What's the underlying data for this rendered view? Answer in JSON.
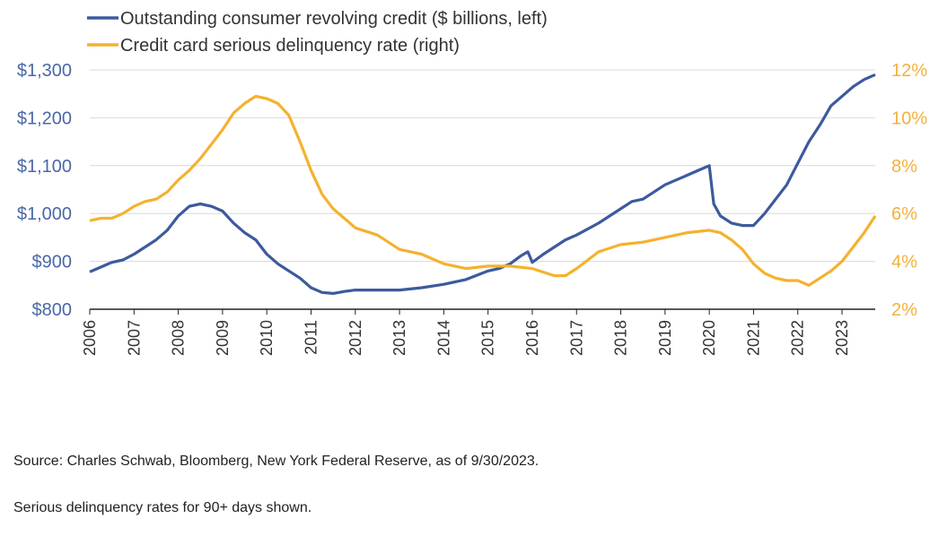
{
  "chart_data": {
    "type": "line",
    "legend_position": "top-left",
    "grid": true,
    "colors": {
      "credit": "#3d5a9e",
      "delinquency": "#f4b22e",
      "left_axis": "#4a67a8",
      "right_axis": "#f2b13c",
      "grid": "#d9d9d9"
    },
    "x_ticks": [
      "2006",
      "2007",
      "2008",
      "2009",
      "2010",
      "2011",
      "2012",
      "2013",
      "2014",
      "2015",
      "2016",
      "2017",
      "2018",
      "2019",
      "2020",
      "2021",
      "2022",
      "2023"
    ],
    "xlim": [
      2006.0,
      2023.75
    ],
    "y_left": {
      "ticks": [
        "$800",
        "$900",
        "$1,000",
        "$1,100",
        "$1,200",
        "$1,300"
      ],
      "values": [
        800,
        900,
        1000,
        1100,
        1200,
        1300
      ],
      "lim": [
        800,
        1300
      ]
    },
    "y_right": {
      "ticks": [
        "2%",
        "4%",
        "6%",
        "8%",
        "10%",
        "12%"
      ],
      "values": [
        2,
        4,
        6,
        8,
        10,
        12
      ],
      "lim": [
        2,
        12
      ]
    },
    "series": [
      {
        "name": "Outstanding consumer revolving credit ($ billions, left)",
        "axis": "left",
        "x": [
          2006.0,
          2006.25,
          2006.5,
          2006.75,
          2007.0,
          2007.25,
          2007.5,
          2007.75,
          2008.0,
          2008.25,
          2008.5,
          2008.75,
          2009.0,
          2009.25,
          2009.5,
          2009.75,
          2010.0,
          2010.25,
          2010.5,
          2010.75,
          2011.0,
          2011.25,
          2011.5,
          2011.75,
          2012.0,
          2012.5,
          2013.0,
          2013.5,
          2014.0,
          2014.5,
          2015.0,
          2015.25,
          2015.5,
          2015.75,
          2015.9,
          2016.0,
          2016.25,
          2016.5,
          2016.75,
          2017.0,
          2017.5,
          2018.0,
          2018.25,
          2018.5,
          2018.75,
          2019.0,
          2019.25,
          2019.5,
          2019.75,
          2020.0,
          2020.1,
          2020.25,
          2020.5,
          2020.75,
          2021.0,
          2021.25,
          2021.5,
          2021.75,
          2022.0,
          2022.25,
          2022.5,
          2022.75,
          2023.0,
          2023.25,
          2023.5,
          2023.75
        ],
        "values": [
          878,
          888,
          898,
          903,
          915,
          930,
          945,
          965,
          995,
          1015,
          1020,
          1015,
          1005,
          980,
          960,
          945,
          915,
          895,
          880,
          865,
          845,
          835,
          833,
          837,
          840,
          840,
          840,
          845,
          852,
          862,
          880,
          885,
          895,
          912,
          920,
          898,
          915,
          930,
          945,
          955,
          980,
          1010,
          1025,
          1030,
          1045,
          1060,
          1070,
          1080,
          1090,
          1100,
          1020,
          995,
          980,
          975,
          975,
          1000,
          1030,
          1060,
          1105,
          1150,
          1185,
          1225,
          1245,
          1265,
          1280,
          1290
        ]
      },
      {
        "name": "Credit card serious delinquency rate (right)",
        "axis": "right",
        "x": [
          2006.0,
          2006.25,
          2006.5,
          2006.75,
          2007.0,
          2007.25,
          2007.5,
          2007.75,
          2008.0,
          2008.25,
          2008.5,
          2008.75,
          2009.0,
          2009.25,
          2009.5,
          2009.75,
          2010.0,
          2010.25,
          2010.5,
          2010.75,
          2011.0,
          2011.25,
          2011.5,
          2011.75,
          2012.0,
          2012.5,
          2013.0,
          2013.5,
          2014.0,
          2014.5,
          2015.0,
          2015.5,
          2016.0,
          2016.5,
          2016.75,
          2017.0,
          2017.5,
          2018.0,
          2018.5,
          2019.0,
          2019.5,
          2020.0,
          2020.25,
          2020.5,
          2020.75,
          2021.0,
          2021.25,
          2021.5,
          2021.75,
          2022.0,
          2022.25,
          2022.5,
          2022.75,
          2023.0,
          2023.25,
          2023.5,
          2023.75
        ],
        "values": [
          5.7,
          5.8,
          5.8,
          6.0,
          6.3,
          6.5,
          6.6,
          6.9,
          7.4,
          7.8,
          8.3,
          8.9,
          9.5,
          10.2,
          10.6,
          10.9,
          10.8,
          10.6,
          10.1,
          9.0,
          7.8,
          6.8,
          6.2,
          5.8,
          5.4,
          5.1,
          4.5,
          4.3,
          3.9,
          3.7,
          3.8,
          3.8,
          3.7,
          3.4,
          3.4,
          3.7,
          4.4,
          4.7,
          4.8,
          5.0,
          5.2,
          5.3,
          5.2,
          4.9,
          4.5,
          3.9,
          3.5,
          3.3,
          3.2,
          3.2,
          3.0,
          3.3,
          3.6,
          4.0,
          4.6,
          5.2,
          5.9
        ]
      }
    ]
  },
  "source_text": "Source: Charles Schwab, Bloomberg, New York Federal Reserve, as of 9/30/2023.",
  "footnote_text": "Serious delinquency rates for 90+ days shown."
}
